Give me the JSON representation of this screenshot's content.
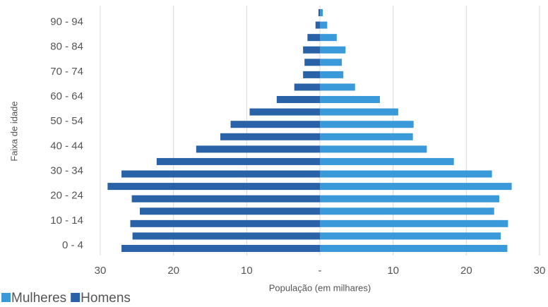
{
  "chart_data": {
    "type": "pyramid",
    "x_label": "População (em milhares)",
    "y_label": "Faixa de idade",
    "categories": [
      "0 - 4",
      null,
      "10 - 14",
      null,
      "20 - 24",
      null,
      "30 - 34",
      null,
      "40 - 44",
      null,
      "50 - 54",
      null,
      "60 - 64",
      null,
      "70 - 74",
      null,
      "80 - 84",
      null,
      "90 - 94",
      null
    ],
    "series": [
      {
        "name": "Mulheres",
        "color": "#3a9ad9",
        "values": [
          25.6,
          24.7,
          25.7,
          23.8,
          24.5,
          26.2,
          23.5,
          18.3,
          14.6,
          12.7,
          12.8,
          10.7,
          8.2,
          4.8,
          3.2,
          3.0,
          3.5,
          2.3,
          1.0,
          0.4
        ]
      },
      {
        "name": "Homens",
        "color": "#2a62a8",
        "values": [
          -27.1,
          -25.6,
          -25.9,
          -24.6,
          -25.7,
          -29.0,
          -27.1,
          -22.3,
          -16.9,
          -13.6,
          -12.2,
          -9.6,
          -5.9,
          -3.5,
          -2.3,
          -2.1,
          -2.3,
          -1.7,
          -0.6,
          -0.2
        ]
      }
    ],
    "xlim": [
      -30,
      30
    ],
    "xticks": [
      {
        "value": -30,
        "label": "30"
      },
      {
        "value": -20,
        "label": "20"
      },
      {
        "value": -10,
        "label": "10"
      },
      {
        "value": 0,
        "label": "-"
      },
      10,
      20,
      30
    ],
    "grid": true,
    "legend": "bottom-left"
  }
}
